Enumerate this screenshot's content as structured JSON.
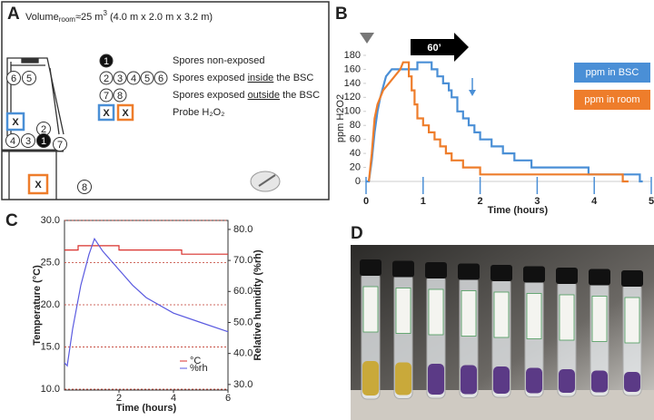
{
  "panel_labels": [
    "A",
    "B",
    "C",
    "D"
  ],
  "diagram": {
    "volume": {
      "word": "Volume",
      "sub": "room",
      "approx": "≈25 m",
      "sup": "3",
      "dims": " (4.0 m x 2.0 m x 3.2 m)"
    },
    "circles": [
      "6",
      "5",
      "2",
      "4",
      "3",
      "1",
      "7",
      "8"
    ],
    "probes": [
      "X",
      "X"
    ],
    "legend": [
      {
        "symbols": [
          "1"
        ],
        "text": "Spores non-exposed"
      },
      {
        "symbols": [
          "2",
          "3",
          "4",
          "5",
          "6"
        ],
        "before": "Spores exposed ",
        "underlined": "inside",
        "after": " the BSC"
      },
      {
        "symbols": [
          "7",
          "8"
        ],
        "before": "Spores exposed ",
        "underlined": "outside",
        "after": " the BSC"
      },
      {
        "symbols": [
          "X",
          "X"
        ],
        "text": "Probe H₂O₂"
      }
    ]
  },
  "chart_data": [
    {
      "type": "line",
      "xlabel": "Time (hours)",
      "ylabel": "ppm H2O2",
      "annotation": "60’",
      "xlim": [
        0,
        5
      ],
      "xticks": [
        0,
        1,
        2,
        3,
        4,
        5
      ],
      "ylim": [
        0,
        180
      ],
      "yticks": [
        0,
        20,
        40,
        60,
        80,
        100,
        120,
        140,
        160,
        180
      ],
      "legend": "right",
      "series": [
        {
          "name": "ppm in BSC",
          "color": "#4a8fd6",
          "x": [
            0,
            0.05,
            0.1,
            0.15,
            0.2,
            0.25,
            0.3,
            0.35,
            0.45,
            0.9,
            0.9,
            1.15,
            1.15,
            1.25,
            1.25,
            1.35,
            1.35,
            1.45,
            1.45,
            1.5,
            1.5,
            1.6,
            1.6,
            1.7,
            1.7,
            1.8,
            1.8,
            1.9,
            1.9,
            2.0,
            2.0,
            2.2,
            2.2,
            2.4,
            2.4,
            2.6,
            2.6,
            2.9,
            2.9,
            3.9,
            3.9,
            4.8,
            4.8,
            4.85
          ],
          "values": [
            0,
            0,
            30,
            70,
            100,
            120,
            135,
            150,
            160,
            160,
            170,
            170,
            160,
            160,
            150,
            150,
            140,
            140,
            130,
            130,
            120,
            120,
            100,
            100,
            90,
            90,
            80,
            80,
            70,
            70,
            60,
            60,
            50,
            50,
            40,
            40,
            30,
            30,
            20,
            20,
            10,
            10,
            0,
            0
          ]
        },
        {
          "name": "ppm in room",
          "color": "#ee7d2b",
          "x": [
            0.05,
            0.1,
            0.15,
            0.2,
            0.25,
            0.3,
            0.4,
            0.5,
            0.6,
            0.65,
            0.75,
            0.75,
            0.8,
            0.8,
            0.85,
            0.85,
            0.9,
            0.9,
            1.0,
            1.0,
            1.1,
            1.1,
            1.2,
            1.2,
            1.3,
            1.3,
            1.4,
            1.4,
            1.5,
            1.5,
            1.7,
            1.7,
            2.0,
            2.0,
            4.5,
            4.5,
            4.6
          ],
          "values": [
            0,
            40,
            90,
            110,
            120,
            130,
            140,
            150,
            160,
            170,
            170,
            150,
            150,
            130,
            130,
            110,
            110,
            90,
            90,
            80,
            80,
            70,
            70,
            60,
            60,
            50,
            50,
            40,
            40,
            30,
            30,
            20,
            20,
            10,
            10,
            0,
            0
          ]
        }
      ]
    },
    {
      "type": "line",
      "xlabel": "Time (hours)",
      "ylabel": "Temperature (°C)",
      "y2label": "Relative humidity (%rh)",
      "xlim": [
        0,
        6
      ],
      "xticks": [
        2,
        4,
        6
      ],
      "ylim": [
        9.9,
        30
      ],
      "yticks": [
        {
          "value": 10,
          "label": "10.0"
        },
        {
          "value": 15,
          "label": "15.0"
        },
        {
          "value": 20,
          "label": "20.0"
        },
        {
          "value": 25,
          "label": "25.0"
        },
        {
          "value": 30,
          "label": "30.0"
        }
      ],
      "y2lim": [
        28.2,
        82.9
      ],
      "y2ticks": [
        {
          "value": 30,
          "label": "30.0"
        },
        {
          "value": 40,
          "label": "40.0"
        },
        {
          "value": 50,
          "label": "50.0"
        },
        {
          "value": 60,
          "label": "60.0"
        },
        {
          "value": 70,
          "label": "70.0"
        },
        {
          "value": 80,
          "label": "80.0"
        }
      ],
      "grid": true,
      "legend": "lower right",
      "series": [
        {
          "name": "°C",
          "color": "#d9302c",
          "x": [
            0,
            0.5,
            0.5,
            2,
            2,
            4.3,
            4.3,
            6
          ],
          "values": [
            26.5,
            26.5,
            27,
            27,
            26.5,
            26.5,
            26,
            26
          ]
        },
        {
          "name": "%rh",
          "color": "#5a5ae0",
          "axis": "y2",
          "x": [
            0,
            0.1,
            0.3,
            0.6,
            0.9,
            1.1,
            1.4,
            2,
            2.5,
            3,
            4,
            5,
            6
          ],
          "values": [
            37,
            36,
            48,
            62,
            72,
            77,
            73,
            67,
            62,
            58,
            53,
            50,
            47
          ]
        }
      ]
    }
  ]
}
